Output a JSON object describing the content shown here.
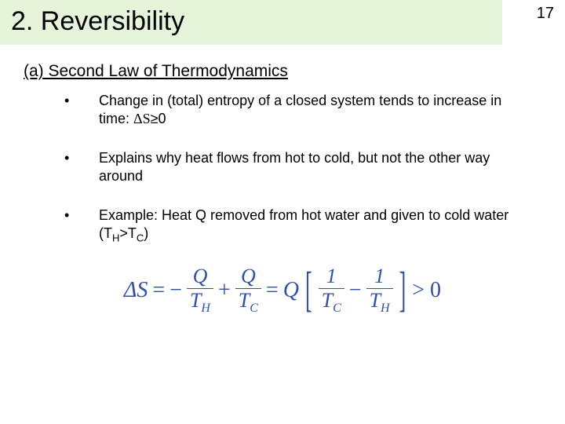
{
  "page_number": "17",
  "title": "2.  Reversibility",
  "section": "(a)  Second Law of Thermodynamics",
  "bullets": {
    "b1_pre": "Change in (total) entropy of a closed system tends to increase in time:  ",
    "b1_delta": "ΔS",
    "b1_ge": "≥",
    "b1_zero": "0",
    "b2": "Explains why heat flows from hot to cold, but not the other way around",
    "b3_pre": "Example:  Heat Q removed from hot water and given to cold water (T",
    "b3_h": "H",
    "b3_gt": ">T",
    "b3_c": "C",
    "b3_close": ")"
  },
  "equation": {
    "color": "#2e4fb0",
    "deltaS": "ΔS",
    "eq": "=",
    "minus": "−",
    "plus": "+",
    "gt0": "> 0",
    "Q": "Q",
    "one": "1",
    "T": "T",
    "H": "H",
    "C": "C",
    "lbracket": "[",
    "rbracket": "]"
  }
}
